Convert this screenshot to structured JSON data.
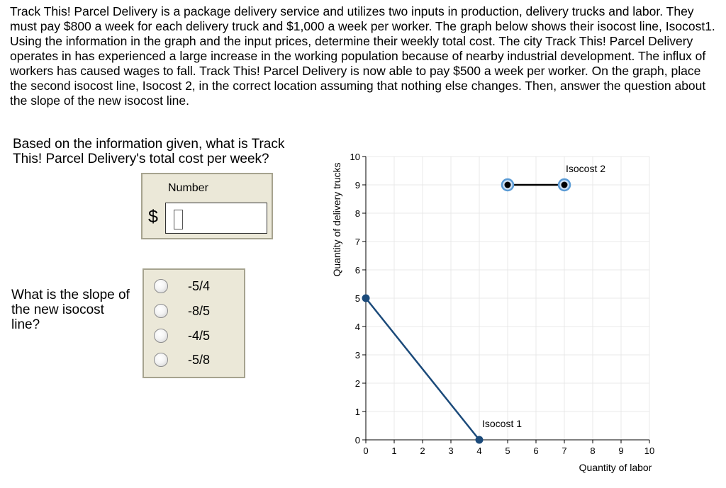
{
  "problem": {
    "text": "Track This! Parcel Delivery is a package delivery service and utilizes two inputs in production, delivery trucks and labor. They must pay $800 a week for each delivery truck and $1,000 a week per worker.  The graph below shows their isocost line, Isocost1. Using the information in the graph and the input prices, determine their weekly total cost. The city Track This! Parcel Delivery operates in has experienced a large increase in the working population because of nearby industrial development. The influx of workers has caused wages to fall. Track This! Parcel Delivery is now able to pay $500 a week per worker. On the graph, place the second isocost line, Isocost 2, in the correct location assuming that nothing else changes. Then, answer the question about the slope of the new isocost line."
  },
  "question1": {
    "text": "Based on the information given, what is Track This! Parcel Delivery's total cost per week?",
    "number_label": "Number",
    "currency": "$",
    "value": ""
  },
  "question2": {
    "text": "What is the slope of the new isocost line?",
    "options": [
      "-5/4",
      "-8/5",
      "-4/5",
      "-5/8"
    ],
    "selected": null
  },
  "chart_data": {
    "type": "line",
    "xlabel": "Quantity of labor",
    "ylabel": "Quantity of delivery trucks",
    "xlim": [
      0,
      10
    ],
    "ylim": [
      0,
      10
    ],
    "xticks": [
      "0",
      "1",
      "2",
      "3",
      "4",
      "5",
      "6",
      "7",
      "8",
      "9",
      "10"
    ],
    "yticks": [
      "0",
      "1",
      "2",
      "3",
      "4",
      "5",
      "6",
      "7",
      "8",
      "9",
      "10"
    ],
    "grid": true,
    "series": [
      {
        "name": "Isocost 1",
        "points": [
          [
            0,
            5
          ],
          [
            4,
            0
          ]
        ],
        "color": "#1b4a7a",
        "label_at": [
          4.1,
          0.45
        ]
      },
      {
        "name": "Isocost 2",
        "points": [
          [
            5,
            9
          ],
          [
            7,
            9
          ]
        ],
        "color": "#000000",
        "label_at": [
          7.05,
          9.45
        ]
      }
    ]
  },
  "colors": {
    "panel_bg": "#ebe8d8",
    "panel_border": "#a6a38f",
    "isocost1_line": "#1b4a7a",
    "grid": "#e8e8e8",
    "handle_ring": "#5b9bd5"
  }
}
